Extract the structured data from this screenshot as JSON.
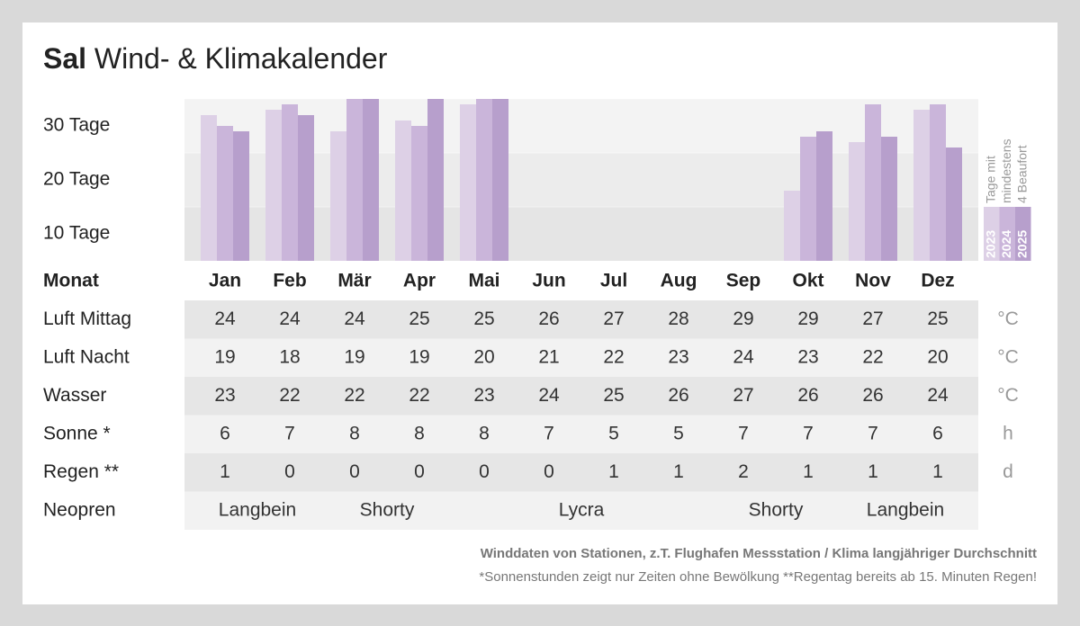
{
  "header": {
    "title_bold": "Sal",
    "title": "Wind- & Klimakalender"
  },
  "chart_data": {
    "type": "bar",
    "categories": [
      "Jan",
      "Feb",
      "Mär",
      "Apr",
      "Mai",
      "Jun",
      "Jul",
      "Aug",
      "Sep",
      "Okt",
      "Nov",
      "Dez"
    ],
    "series": [
      {
        "name": "2023",
        "color": "#ddd0e6",
        "values": [
          27,
          28,
          24,
          26,
          29,
          null,
          null,
          null,
          null,
          13,
          22,
          28
        ]
      },
      {
        "name": "2024",
        "color": "#cab5da",
        "values": [
          25,
          29,
          30,
          25,
          30,
          null,
          null,
          null,
          null,
          23,
          29,
          29
        ]
      },
      {
        "name": "2025",
        "color": "#b79fcc",
        "values": [
          24,
          27,
          30,
          30,
          30,
          null,
          null,
          null,
          null,
          24,
          23,
          21
        ]
      }
    ],
    "ylim": [
      0,
      30
    ],
    "yticks": [
      {
        "value": 10,
        "label": "10 Tage"
      },
      {
        "value": 20,
        "label": "20 Tage"
      },
      {
        "value": 30,
        "label": "30 Tage"
      }
    ],
    "legend_title": [
      "Tage mit",
      "mindestens",
      "4 Beaufort"
    ]
  },
  "table": {
    "header_label": "Monat",
    "rows": [
      {
        "label": "Luft Mittag",
        "values": [
          24,
          24,
          24,
          25,
          25,
          26,
          27,
          28,
          29,
          29,
          27,
          25
        ],
        "unit": "°C"
      },
      {
        "label": "Luft Nacht",
        "values": [
          19,
          18,
          19,
          19,
          20,
          21,
          22,
          23,
          24,
          23,
          22,
          20
        ],
        "unit": "°C"
      },
      {
        "label": "Wasser",
        "values": [
          23,
          22,
          22,
          22,
          23,
          24,
          25,
          26,
          27,
          26,
          26,
          24
        ],
        "unit": "°C"
      },
      {
        "label": "Sonne *",
        "values": [
          6,
          7,
          8,
          8,
          8,
          7,
          5,
          5,
          7,
          7,
          7,
          6
        ],
        "unit": "h"
      },
      {
        "label": "Regen **",
        "values": [
          1,
          0,
          0,
          0,
          0,
          0,
          1,
          1,
          2,
          1,
          1,
          1
        ],
        "unit": "d"
      }
    ],
    "neopren": {
      "label": "Neopren",
      "values": [
        "Langbein",
        null,
        "Shorty",
        null,
        "Lycra",
        null,
        null,
        null,
        "Shorty",
        null,
        "Langbein",
        null
      ]
    }
  },
  "footer": [
    "Winddaten von Stationen, z.T. Flughafen Messstation / Klima langjähriger Durchschnitt",
    "*Sonnenstunden zeigt nur Zeiten ohne Bewölkung  **Regentag bereits ab 15. Minuten Regen!"
  ]
}
